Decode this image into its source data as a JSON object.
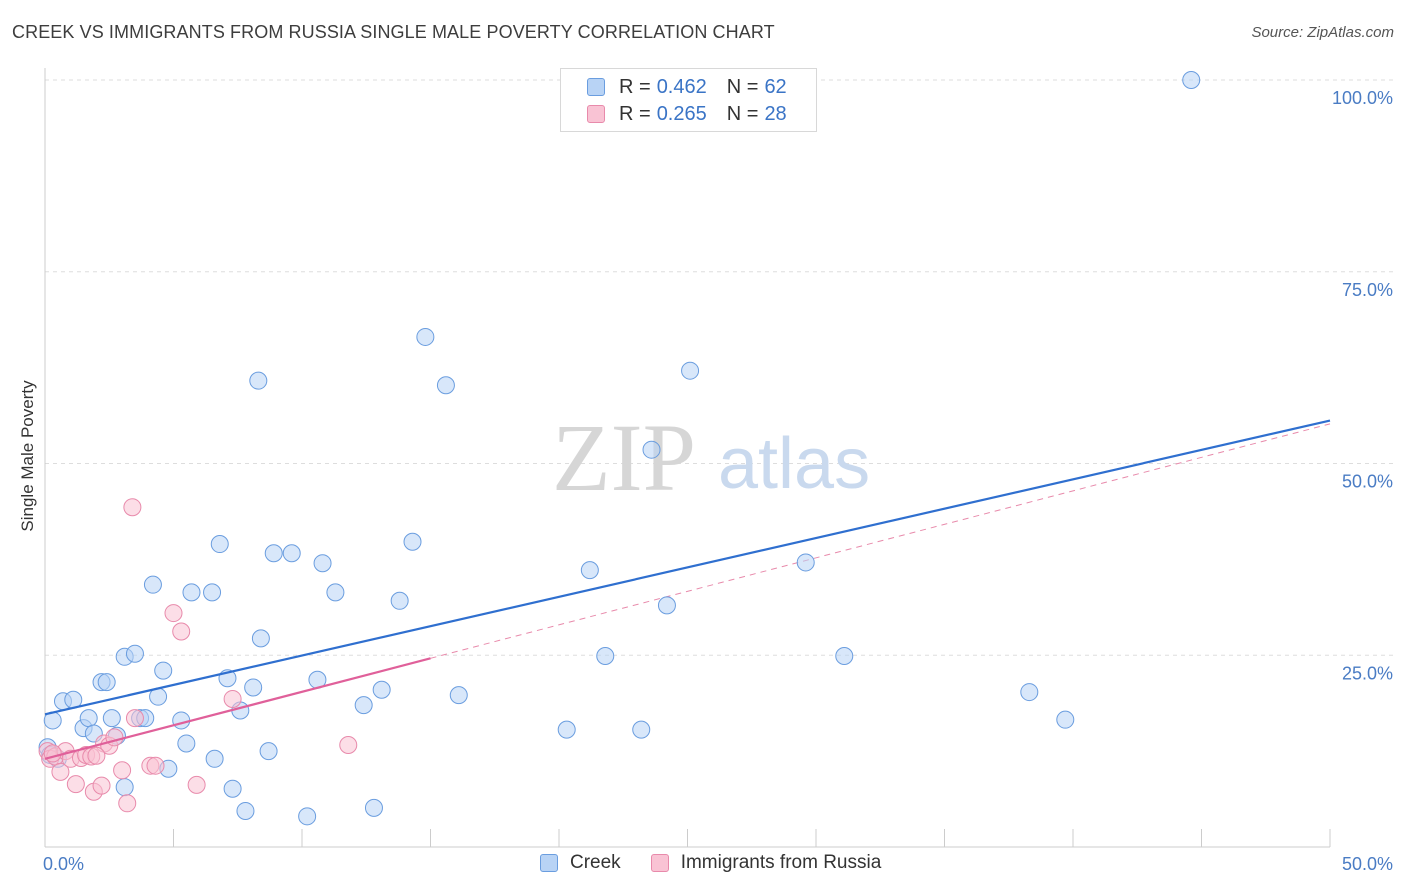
{
  "title": "CREEK VS IMMIGRANTS FROM RUSSIA SINGLE MALE POVERTY CORRELATION CHART",
  "source": "Source: ZipAtlas.com",
  "watermark": {
    "zip": "ZIP",
    "atlas": "atlas"
  },
  "legend": {
    "rows": [
      {
        "r_label": "R =",
        "r_value": "0.462",
        "n_label": "N =",
        "n_value": "62"
      },
      {
        "r_label": "R =",
        "r_value": "0.265",
        "n_label": "N =",
        "n_value": "28"
      }
    ]
  },
  "bottom_legend": {
    "series1": "Creek",
    "series2": "Immigrants from Russia"
  },
  "colors": {
    "creek_fill": "#b8d3f5",
    "creek_stroke": "#6a9ddf",
    "creek_line": "#2f6fcf",
    "russia_fill": "#f9c3d4",
    "russia_stroke": "#e88aab",
    "russia_line": "#e0609a",
    "grid": "#dddddd",
    "tick_text": "#4a7cc4"
  },
  "chart_data": {
    "type": "scatter",
    "title": "CREEK VS IMMIGRANTS FROM RUSSIA SINGLE MALE POVERTY CORRELATION CHART",
    "xlabel": "",
    "ylabel": "Single Male Poverty",
    "xlim": [
      0,
      50
    ],
    "ylim": [
      0,
      100
    ],
    "x_tick_labels": [
      "0.0%",
      "50.0%"
    ],
    "y_ticks": [
      25,
      50,
      75,
      100
    ],
    "y_tick_labels": [
      "25.0%",
      "50.0%",
      "75.0%",
      "100.0%"
    ],
    "series": [
      {
        "name": "Creek",
        "R": 0.462,
        "N": 62,
        "trend": {
          "x": [
            0,
            50
          ],
          "y": [
            17.3,
            55.6
          ]
        },
        "points": [
          [
            0.3,
            16.5
          ],
          [
            0.7,
            19
          ],
          [
            1.1,
            19.2
          ],
          [
            1.5,
            15.5
          ],
          [
            1.7,
            16.8
          ],
          [
            1.9,
            14.8
          ],
          [
            2.2,
            21.5
          ],
          [
            2.4,
            21.5
          ],
          [
            2.6,
            16.8
          ],
          [
            2.8,
            14.5
          ],
          [
            3.1,
            7.8
          ],
          [
            3.1,
            24.8
          ],
          [
            3.5,
            25.2
          ],
          [
            3.7,
            16.8
          ],
          [
            3.9,
            16.8
          ],
          [
            4.2,
            34.2
          ],
          [
            4.4,
            19.6
          ],
          [
            4.6,
            23
          ],
          [
            4.8,
            10.2
          ],
          [
            5.3,
            16.5
          ],
          [
            5.5,
            13.5
          ],
          [
            5.7,
            33.2
          ],
          [
            6.5,
            33.2
          ],
          [
            6.6,
            11.5
          ],
          [
            6.8,
            39.5
          ],
          [
            7.1,
            22
          ],
          [
            7.3,
            7.6
          ],
          [
            7.6,
            17.8
          ],
          [
            7.8,
            4.7
          ],
          [
            8.1,
            20.8
          ],
          [
            8.3,
            60.8
          ],
          [
            8.4,
            27.2
          ],
          [
            8.7,
            12.5
          ],
          [
            8.9,
            38.3
          ],
          [
            9.6,
            38.3
          ],
          [
            10.2,
            4
          ],
          [
            10.6,
            21.8
          ],
          [
            10.8,
            37
          ],
          [
            11.3,
            33.2
          ],
          [
            12.4,
            18.5
          ],
          [
            12.8,
            5.1
          ],
          [
            13.1,
            20.5
          ],
          [
            13.8,
            32.1
          ],
          [
            14.3,
            39.8
          ],
          [
            14.8,
            66.5
          ],
          [
            15.6,
            60.2
          ],
          [
            16.1,
            19.8
          ],
          [
            20.3,
            15.3
          ],
          [
            21.2,
            36.1
          ],
          [
            21.8,
            24.9
          ],
          [
            23.2,
            15.3
          ],
          [
            23.6,
            51.8
          ],
          [
            24.2,
            31.5
          ],
          [
            25.1,
            62.1
          ],
          [
            29.6,
            37.1
          ],
          [
            31.1,
            24.9
          ],
          [
            38.3,
            20.2
          ],
          [
            39.7,
            16.6
          ],
          [
            44.6,
            100
          ],
          [
            0.1,
            13
          ],
          [
            0.2,
            12
          ],
          [
            0.5,
            11.5
          ]
        ]
      },
      {
        "name": "Immigrants from Russia",
        "R": 0.265,
        "N": 28,
        "trend": {
          "x": [
            0,
            15
          ],
          "y": [
            11.5,
            24.6
          ]
        },
        "points": [
          [
            0.1,
            12.5
          ],
          [
            0.2,
            11.5
          ],
          [
            0.4,
            11.8
          ],
          [
            0.6,
            9.8
          ],
          [
            0.8,
            12.5
          ],
          [
            1,
            11.5
          ],
          [
            1.2,
            8.2
          ],
          [
            1.4,
            11.6
          ],
          [
            1.6,
            12
          ],
          [
            1.8,
            11.8
          ],
          [
            1.9,
            7.2
          ],
          [
            2.2,
            8
          ],
          [
            2.3,
            13.5
          ],
          [
            2.5,
            13.2
          ],
          [
            2.7,
            14.3
          ],
          [
            3,
            10
          ],
          [
            3.2,
            5.7
          ],
          [
            3.4,
            44.3
          ],
          [
            3.5,
            16.8
          ],
          [
            4.1,
            10.6
          ],
          [
            4.3,
            10.6
          ],
          [
            5,
            30.5
          ],
          [
            5.3,
            28.1
          ],
          [
            5.9,
            8.1
          ],
          [
            7.3,
            19.3
          ],
          [
            11.8,
            13.3
          ],
          [
            0.3,
            12.2
          ],
          [
            2,
            11.9
          ]
        ]
      }
    ]
  }
}
